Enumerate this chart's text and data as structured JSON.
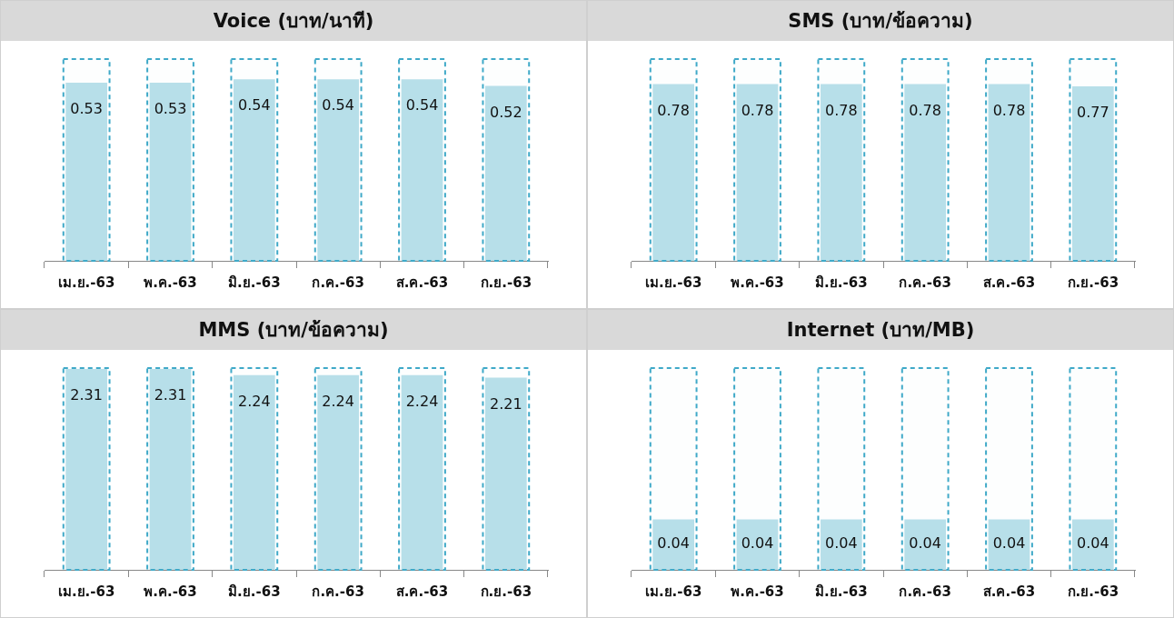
{
  "chart_data": [
    {
      "type": "bar",
      "title": "Voice (บาท/นาที)",
      "categories": [
        "เม.ย.-63",
        "พ.ค.-63",
        "มิ.ย.-63",
        "ก.ค.-63",
        "ส.ค.-63",
        "ก.ย.-63"
      ],
      "series": [
        {
          "color": "#b7dfe9",
          "values": [
            0.53,
            0.53,
            0.54,
            0.54,
            0.54,
            0.52
          ],
          "value_labels": [
            "0.53",
            "0.53",
            "0.54",
            "0.54",
            "0.54",
            "0.52"
          ]
        },
        {
          "color": "#3fa9c8",
          "line_style": "dashed",
          "values": [
            0.6,
            0.6,
            0.6,
            0.6,
            0.6,
            0.6
          ]
        }
      ]
    },
    {
      "type": "bar",
      "title": "SMS (บาท/ข้อความ)",
      "categories": [
        "เม.ย.-63",
        "พ.ค.-63",
        "มิ.ย.-63",
        "ก.ค.-63",
        "ส.ค.-63",
        "ก.ย.-63"
      ],
      "series": [
        {
          "color": "#b7dfe9",
          "values": [
            0.78,
            0.78,
            0.78,
            0.78,
            0.78,
            0.77
          ],
          "value_labels": [
            "0.78",
            "0.78",
            "0.78",
            "0.78",
            "0.78",
            "0.77"
          ]
        },
        {
          "color": "#3fa9c8",
          "line_style": "dashed",
          "values": [
            0.89,
            0.89,
            0.89,
            0.89,
            0.89,
            0.89
          ]
        }
      ]
    },
    {
      "type": "bar",
      "title": "MMS (บาท/ข้อความ)",
      "categories": [
        "เม.ย.-63",
        "พ.ค.-63",
        "มิ.ย.-63",
        "ก.ค.-63",
        "ส.ค.-63",
        "ก.ย.-63"
      ],
      "series": [
        {
          "color": "#b7dfe9",
          "values": [
            2.31,
            2.31,
            2.24,
            2.24,
            2.24,
            2.21
          ],
          "value_labels": [
            "2.31",
            "2.31",
            "2.24",
            "2.24",
            "2.24",
            "2.21"
          ]
        },
        {
          "color": "#3fa9c8",
          "line_style": "dashed",
          "values": [
            2.32,
            2.32,
            2.32,
            2.32,
            2.32,
            2.32
          ]
        }
      ]
    },
    {
      "type": "bar",
      "title": "Internet (บาท/MB)",
      "categories": [
        "เม.ย.-63",
        "พ.ค.-63",
        "มิ.ย.-63",
        "ก.ค.-63",
        "ส.ค.-63",
        "ก.ย.-63"
      ],
      "series": [
        {
          "color": "#b7dfe9",
          "values": [
            0.04,
            0.04,
            0.04,
            0.04,
            0.04,
            0.04
          ],
          "value_labels": [
            "0.04",
            "0.04",
            "0.04",
            "0.04",
            "0.04",
            "0.04"
          ]
        },
        {
          "color": "#3fa9c8",
          "line_style": "dashed",
          "values": [
            0.16,
            0.16,
            0.16,
            0.16,
            0.16,
            0.16
          ]
        }
      ]
    }
  ]
}
